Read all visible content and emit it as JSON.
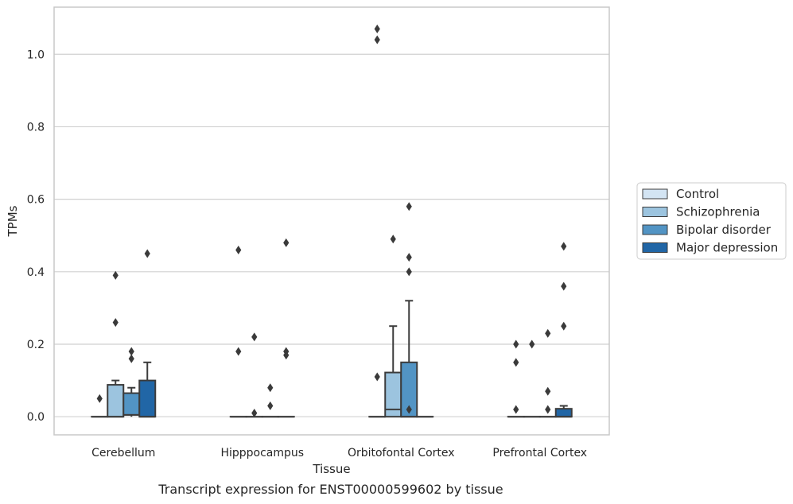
{
  "caption": "Transcript expression for ENST00000599602 by tissue",
  "chart_data": {
    "type": "box",
    "xlabel": "Tissue",
    "ylabel": "TPMs",
    "ylim": [
      -0.05,
      1.13
    ],
    "yticks": [
      0.0,
      0.2,
      0.4,
      0.6,
      0.8,
      1.0
    ],
    "ytick_labels": [
      "0.0",
      "0.2",
      "0.4",
      "0.6",
      "0.8",
      "1.0"
    ],
    "grid": "horizontal",
    "legend_position": "right",
    "categories": [
      "Cerebellum",
      "Hipppocampus",
      "Orbitofontal Cortex",
      "Prefrontal Cortex"
    ],
    "series": [
      {
        "name": "Control",
        "color": "#d3e4f3",
        "boxes": [
          {
            "q1": 0,
            "median": 0,
            "q3": 0,
            "whisker_low": 0,
            "whisker_high": 0,
            "outliers": [
              0.05
            ]
          },
          {
            "q1": 0,
            "median": 0,
            "q3": 0,
            "whisker_low": 0,
            "whisker_high": 0,
            "outliers": [
              0.46,
              0.18
            ]
          },
          {
            "q1": 0,
            "median": 0,
            "q3": 0,
            "whisker_low": 0,
            "whisker_high": 0,
            "outliers": [
              1.07,
              1.04,
              0.11
            ]
          },
          {
            "q1": 0,
            "median": 0,
            "q3": 0,
            "whisker_low": 0,
            "whisker_high": 0,
            "outliers": [
              0.2,
              0.15,
              0.02
            ]
          }
        ]
      },
      {
        "name": "Schizophrenia",
        "color": "#9cc4df",
        "boxes": [
          {
            "q1": 0,
            "median": 0,
            "q3": 0.088,
            "whisker_low": 0,
            "whisker_high": 0.1,
            "outliers": [
              0.39,
              0.26
            ]
          },
          {
            "q1": 0,
            "median": 0,
            "q3": 0,
            "whisker_low": 0,
            "whisker_high": 0,
            "outliers": [
              0.22,
              0.01
            ]
          },
          {
            "q1": 0,
            "median": 0.02,
            "q3": 0.122,
            "whisker_low": 0,
            "whisker_high": 0.25,
            "outliers": [
              0.49
            ]
          },
          {
            "q1": 0,
            "median": 0,
            "q3": 0,
            "whisker_low": 0,
            "whisker_high": 0,
            "outliers": [
              0.2
            ]
          }
        ]
      },
      {
        "name": "Bipolar disorder",
        "color": "#5294c4",
        "boxes": [
          {
            "q1": 0.005,
            "median": 0.005,
            "q3": 0.065,
            "whisker_low": 0,
            "whisker_high": 0.08,
            "outliers": [
              0.18,
              0.16
            ]
          },
          {
            "q1": 0,
            "median": 0,
            "q3": 0,
            "whisker_low": 0,
            "whisker_high": 0,
            "outliers": [
              0.08,
              0.03
            ]
          },
          {
            "q1": 0,
            "median": 0,
            "q3": 0.15,
            "whisker_low": 0,
            "whisker_high": 0.32,
            "outliers": [
              0.58,
              0.44,
              0.4,
              0.02
            ]
          },
          {
            "q1": 0,
            "median": 0,
            "q3": 0,
            "whisker_low": 0,
            "whisker_high": 0,
            "outliers": [
              0.23,
              0.07,
              0.02
            ]
          }
        ]
      },
      {
        "name": "Major depression",
        "color": "#2166a6",
        "boxes": [
          {
            "q1": 0,
            "median": 0,
            "q3": 0.1,
            "whisker_low": 0,
            "whisker_high": 0.15,
            "outliers": [
              0.45
            ]
          },
          {
            "q1": 0,
            "median": 0,
            "q3": 0,
            "whisker_low": 0,
            "whisker_high": 0,
            "outliers": [
              0.48,
              0.18,
              0.17
            ]
          },
          {
            "q1": 0,
            "median": 0,
            "q3": 0,
            "whisker_low": 0,
            "whisker_high": 0,
            "outliers": []
          },
          {
            "q1": 0,
            "median": 0,
            "q3": 0.022,
            "whisker_low": 0,
            "whisker_high": 0.03,
            "outliers": [
              0.47,
              0.36,
              0.25
            ]
          }
        ]
      }
    ]
  }
}
